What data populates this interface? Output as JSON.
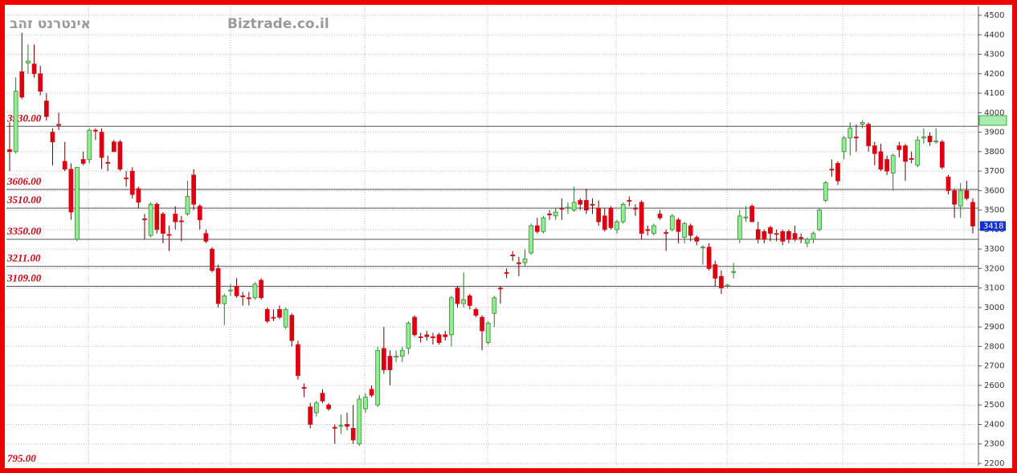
{
  "chart_data": {
    "type": "candlestick",
    "title": "אינטרנט זהב",
    "watermark": "Biztrade.co.il",
    "annotations": [
      "795.00"
    ],
    "up_color": "#90ee90",
    "down_color": "#dd0010",
    "ylim": [
      2200,
      4500
    ],
    "yticks": [
      2200,
      2300,
      2400,
      2500,
      2600,
      2700,
      2800,
      2900,
      3000,
      3100,
      3200,
      3300,
      3400,
      3500,
      3600,
      3700,
      3800,
      3900,
      4000,
      4100,
      4200,
      4300,
      4400,
      4500
    ],
    "grid": true,
    "last": 3418,
    "levels": [
      {
        "value": 3930,
        "label": "3930.00"
      },
      {
        "value": 3606,
        "label": "3606.00"
      },
      {
        "value": 3510,
        "label": "3510.00"
      },
      {
        "value": 3350,
        "label": "3350.00"
      },
      {
        "value": 3211,
        "label": "3211.00"
      },
      {
        "value": 3109,
        "label": "3109.00"
      }
    ],
    "ohlc": [
      [
        3810,
        3950,
        3700,
        3800
      ],
      [
        3800,
        4180,
        3790,
        4110
      ],
      [
        4210,
        4410,
        4070,
        4080
      ],
      [
        4255,
        4350,
        4200,
        4265
      ],
      [
        4250,
        4350,
        4180,
        4200
      ],
      [
        4200,
        4240,
        4090,
        4110
      ],
      [
        4060,
        4100,
        3960,
        3980
      ],
      [
        3900,
        3920,
        3730,
        3850
      ],
      [
        3940,
        4000,
        3910,
        3935
      ],
      [
        3750,
        3850,
        3700,
        3710
      ],
      [
        3710,
        3740,
        3450,
        3490
      ],
      [
        3350,
        3720,
        3340,
        3720
      ],
      [
        3760,
        3800,
        3730,
        3740
      ],
      [
        3760,
        3920,
        3740,
        3910
      ],
      [
        3910,
        3920,
        3860,
        3905
      ],
      [
        3900,
        3920,
        3710,
        3770
      ],
      [
        3745,
        3780,
        3700,
        3740
      ],
      [
        3850,
        3860,
        3800,
        3800
      ],
      [
        3850,
        3860,
        3700,
        3710
      ],
      [
        3665,
        3700,
        3620,
        3660
      ],
      [
        3700,
        3720,
        3560,
        3580
      ],
      [
        3610,
        3620,
        3510,
        3540
      ],
      [
        3455,
        3480,
        3350,
        3450
      ],
      [
        3370,
        3540,
        3360,
        3530
      ],
      [
        3530,
        3540,
        3380,
        3400
      ],
      [
        3480,
        3490,
        3330,
        3380
      ],
      [
        3375,
        3420,
        3290,
        3370
      ],
      [
        3480,
        3520,
        3400,
        3440
      ],
      [
        3445,
        3470,
        3340,
        3440
      ],
      [
        3480,
        3650,
        3470,
        3570
      ],
      [
        3680,
        3710,
        3500,
        3530
      ],
      [
        3520,
        3530,
        3400,
        3450
      ],
      [
        3380,
        3400,
        3330,
        3340
      ],
      [
        3300,
        3310,
        3180,
        3190
      ],
      [
        3200,
        3220,
        3000,
        3020
      ],
      [
        3020,
        3070,
        2910,
        3060
      ],
      [
        3085,
        3120,
        3060,
        3090
      ],
      [
        3110,
        3150,
        3050,
        3060
      ],
      [
        3060,
        3080,
        3010,
        3055
      ],
      [
        3050,
        3080,
        3010,
        3045
      ],
      [
        3050,
        3130,
        3040,
        3120
      ],
      [
        3140,
        3150,
        3040,
        3050
      ],
      [
        2990,
        3000,
        2920,
        2930
      ],
      [
        2950,
        2990,
        2930,
        2945
      ],
      [
        2990,
        3010,
        2940,
        2950
      ],
      [
        2900,
        3000,
        2890,
        2990
      ],
      [
        2960,
        2970,
        2800,
        2830
      ],
      [
        2810,
        2830,
        2630,
        2650
      ],
      [
        2590,
        2610,
        2540,
        2585
      ],
      [
        2490,
        2510,
        2380,
        2400
      ],
      [
        2460,
        2520,
        2440,
        2510
      ],
      [
        2560,
        2580,
        2510,
        2520
      ],
      [
        2500,
        2510,
        2470,
        2480
      ],
      [
        2385,
        2400,
        2300,
        2380
      ],
      [
        2390,
        2450,
        2350,
        2395
      ],
      [
        2400,
        2460,
        2370,
        2390
      ],
      [
        2380,
        2500,
        2300,
        2320
      ],
      [
        2300,
        2550,
        2290,
        2530
      ],
      [
        2480,
        2560,
        2460,
        2540
      ],
      [
        2580,
        2600,
        2540,
        2550
      ],
      [
        2500,
        2800,
        2490,
        2780
      ],
      [
        2790,
        2900,
        2660,
        2680
      ],
      [
        2750,
        2780,
        2600,
        2680
      ],
      [
        2745,
        2780,
        2720,
        2750
      ],
      [
        2750,
        2800,
        2720,
        2780
      ],
      [
        2790,
        2930,
        2760,
        2920
      ],
      [
        2950,
        2960,
        2850,
        2860
      ],
      [
        2850,
        2870,
        2820,
        2845
      ],
      [
        2860,
        2880,
        2830,
        2850
      ],
      [
        2850,
        2870,
        2810,
        2845
      ],
      [
        2860,
        2870,
        2810,
        2820
      ],
      [
        2860,
        2880,
        2830,
        2850
      ],
      [
        2860,
        3060,
        2800,
        3050
      ],
      [
        3100,
        3110,
        3000,
        3020
      ],
      [
        3020,
        3180,
        3000,
        3040
      ],
      [
        3060,
        3070,
        2990,
        3010
      ],
      [
        2990,
        3000,
        2950,
        2960
      ],
      [
        2950,
        2960,
        2780,
        2880
      ],
      [
        2820,
        2930,
        2810,
        2920
      ],
      [
        2970,
        3060,
        2900,
        3050
      ],
      [
        3100,
        3110,
        3020,
        3095
      ],
      [
        3180,
        3200,
        3150,
        3175
      ],
      [
        3270,
        3290,
        3240,
        3265
      ],
      [
        3230,
        3260,
        3160,
        3225
      ],
      [
        3230,
        3300,
        3210,
        3250
      ],
      [
        3280,
        3430,
        3270,
        3420
      ],
      [
        3420,
        3460,
        3380,
        3390
      ],
      [
        3390,
        3470,
        3380,
        3460
      ],
      [
        3480,
        3500,
        3450,
        3475
      ],
      [
        3470,
        3510,
        3450,
        3490
      ],
      [
        3510,
        3560,
        3450,
        3505
      ],
      [
        3510,
        3540,
        3480,
        3515
      ],
      [
        3500,
        3620,
        3490,
        3540
      ],
      [
        3550,
        3560,
        3500,
        3530
      ],
      [
        3550,
        3610,
        3480,
        3500
      ],
      [
        3530,
        3560,
        3480,
        3525
      ],
      [
        3510,
        3550,
        3420,
        3440
      ],
      [
        3470,
        3510,
        3390,
        3400
      ],
      [
        3510,
        3520,
        3400,
        3410
      ],
      [
        3400,
        3450,
        3380,
        3440
      ],
      [
        3440,
        3540,
        3430,
        3530
      ],
      [
        3550,
        3570,
        3520,
        3545
      ],
      [
        3510,
        3530,
        3470,
        3505
      ],
      [
        3540,
        3550,
        3350,
        3380
      ],
      [
        3400,
        3420,
        3370,
        3395
      ],
      [
        3380,
        3430,
        3370,
        3420
      ],
      [
        3480,
        3500,
        3450,
        3460
      ],
      [
        3385,
        3400,
        3290,
        3380
      ],
      [
        3400,
        3480,
        3390,
        3470
      ],
      [
        3450,
        3460,
        3330,
        3390
      ],
      [
        3360,
        3440,
        3330,
        3430
      ],
      [
        3420,
        3430,
        3340,
        3370
      ],
      [
        3360,
        3370,
        3320,
        3340
      ],
      [
        3310,
        3320,
        3220,
        3310
      ],
      [
        3310,
        3330,
        3190,
        3200
      ],
      [
        3220,
        3240,
        3110,
        3150
      ],
      [
        3160,
        3190,
        3070,
        3100
      ],
      [
        3110,
        3120,
        3100,
        3115
      ],
      [
        3180,
        3230,
        3150,
        3185
      ],
      [
        3350,
        3500,
        3330,
        3470
      ],
      [
        3460,
        3520,
        3440,
        3465
      ],
      [
        3520,
        3530,
        3440,
        3440
      ],
      [
        3400,
        3440,
        3330,
        3350
      ],
      [
        3390,
        3400,
        3330,
        3350
      ],
      [
        3410,
        3420,
        3340,
        3380
      ],
      [
        3380,
        3400,
        3340,
        3375
      ],
      [
        3390,
        3400,
        3320,
        3340
      ],
      [
        3390,
        3400,
        3330,
        3350
      ],
      [
        3380,
        3420,
        3340,
        3350
      ],
      [
        3360,
        3380,
        3330,
        3355
      ],
      [
        3330,
        3360,
        3310,
        3350
      ],
      [
        3350,
        3390,
        3330,
        3380
      ],
      [
        3400,
        3510,
        3390,
        3500
      ],
      [
        3550,
        3650,
        3540,
        3640
      ],
      [
        3710,
        3760,
        3670,
        3705
      ],
      [
        3740,
        3750,
        3630,
        3650
      ],
      [
        3800,
        3880,
        3760,
        3870
      ],
      [
        3870,
        3950,
        3780,
        3920
      ],
      [
        3875,
        3940,
        3800,
        3870
      ],
      [
        3940,
        3960,
        3920,
        3950
      ],
      [
        3940,
        3950,
        3800,
        3830
      ],
      [
        3830,
        3850,
        3730,
        3790
      ],
      [
        3800,
        3840,
        3700,
        3710
      ],
      [
        3760,
        3780,
        3680,
        3700
      ],
      [
        3690,
        3790,
        3600,
        3780
      ],
      [
        3830,
        3850,
        3770,
        3810
      ],
      [
        3830,
        3840,
        3650,
        3750
      ],
      [
        3765,
        3800,
        3740,
        3760
      ],
      [
        3730,
        3880,
        3720,
        3860
      ],
      [
        3870,
        3920,
        3840,
        3875
      ],
      [
        3880,
        3900,
        3830,
        3850
      ],
      [
        3850,
        3920,
        3840,
        3855
      ],
      [
        3850,
        3860,
        3710,
        3720
      ],
      [
        3670,
        3680,
        3580,
        3600
      ],
      [
        3600,
        3610,
        3460,
        3530
      ],
      [
        3520,
        3640,
        3460,
        3600
      ],
      [
        3600,
        3650,
        3550,
        3560
      ],
      [
        3540,
        3560,
        3380,
        3418
      ]
    ]
  }
}
